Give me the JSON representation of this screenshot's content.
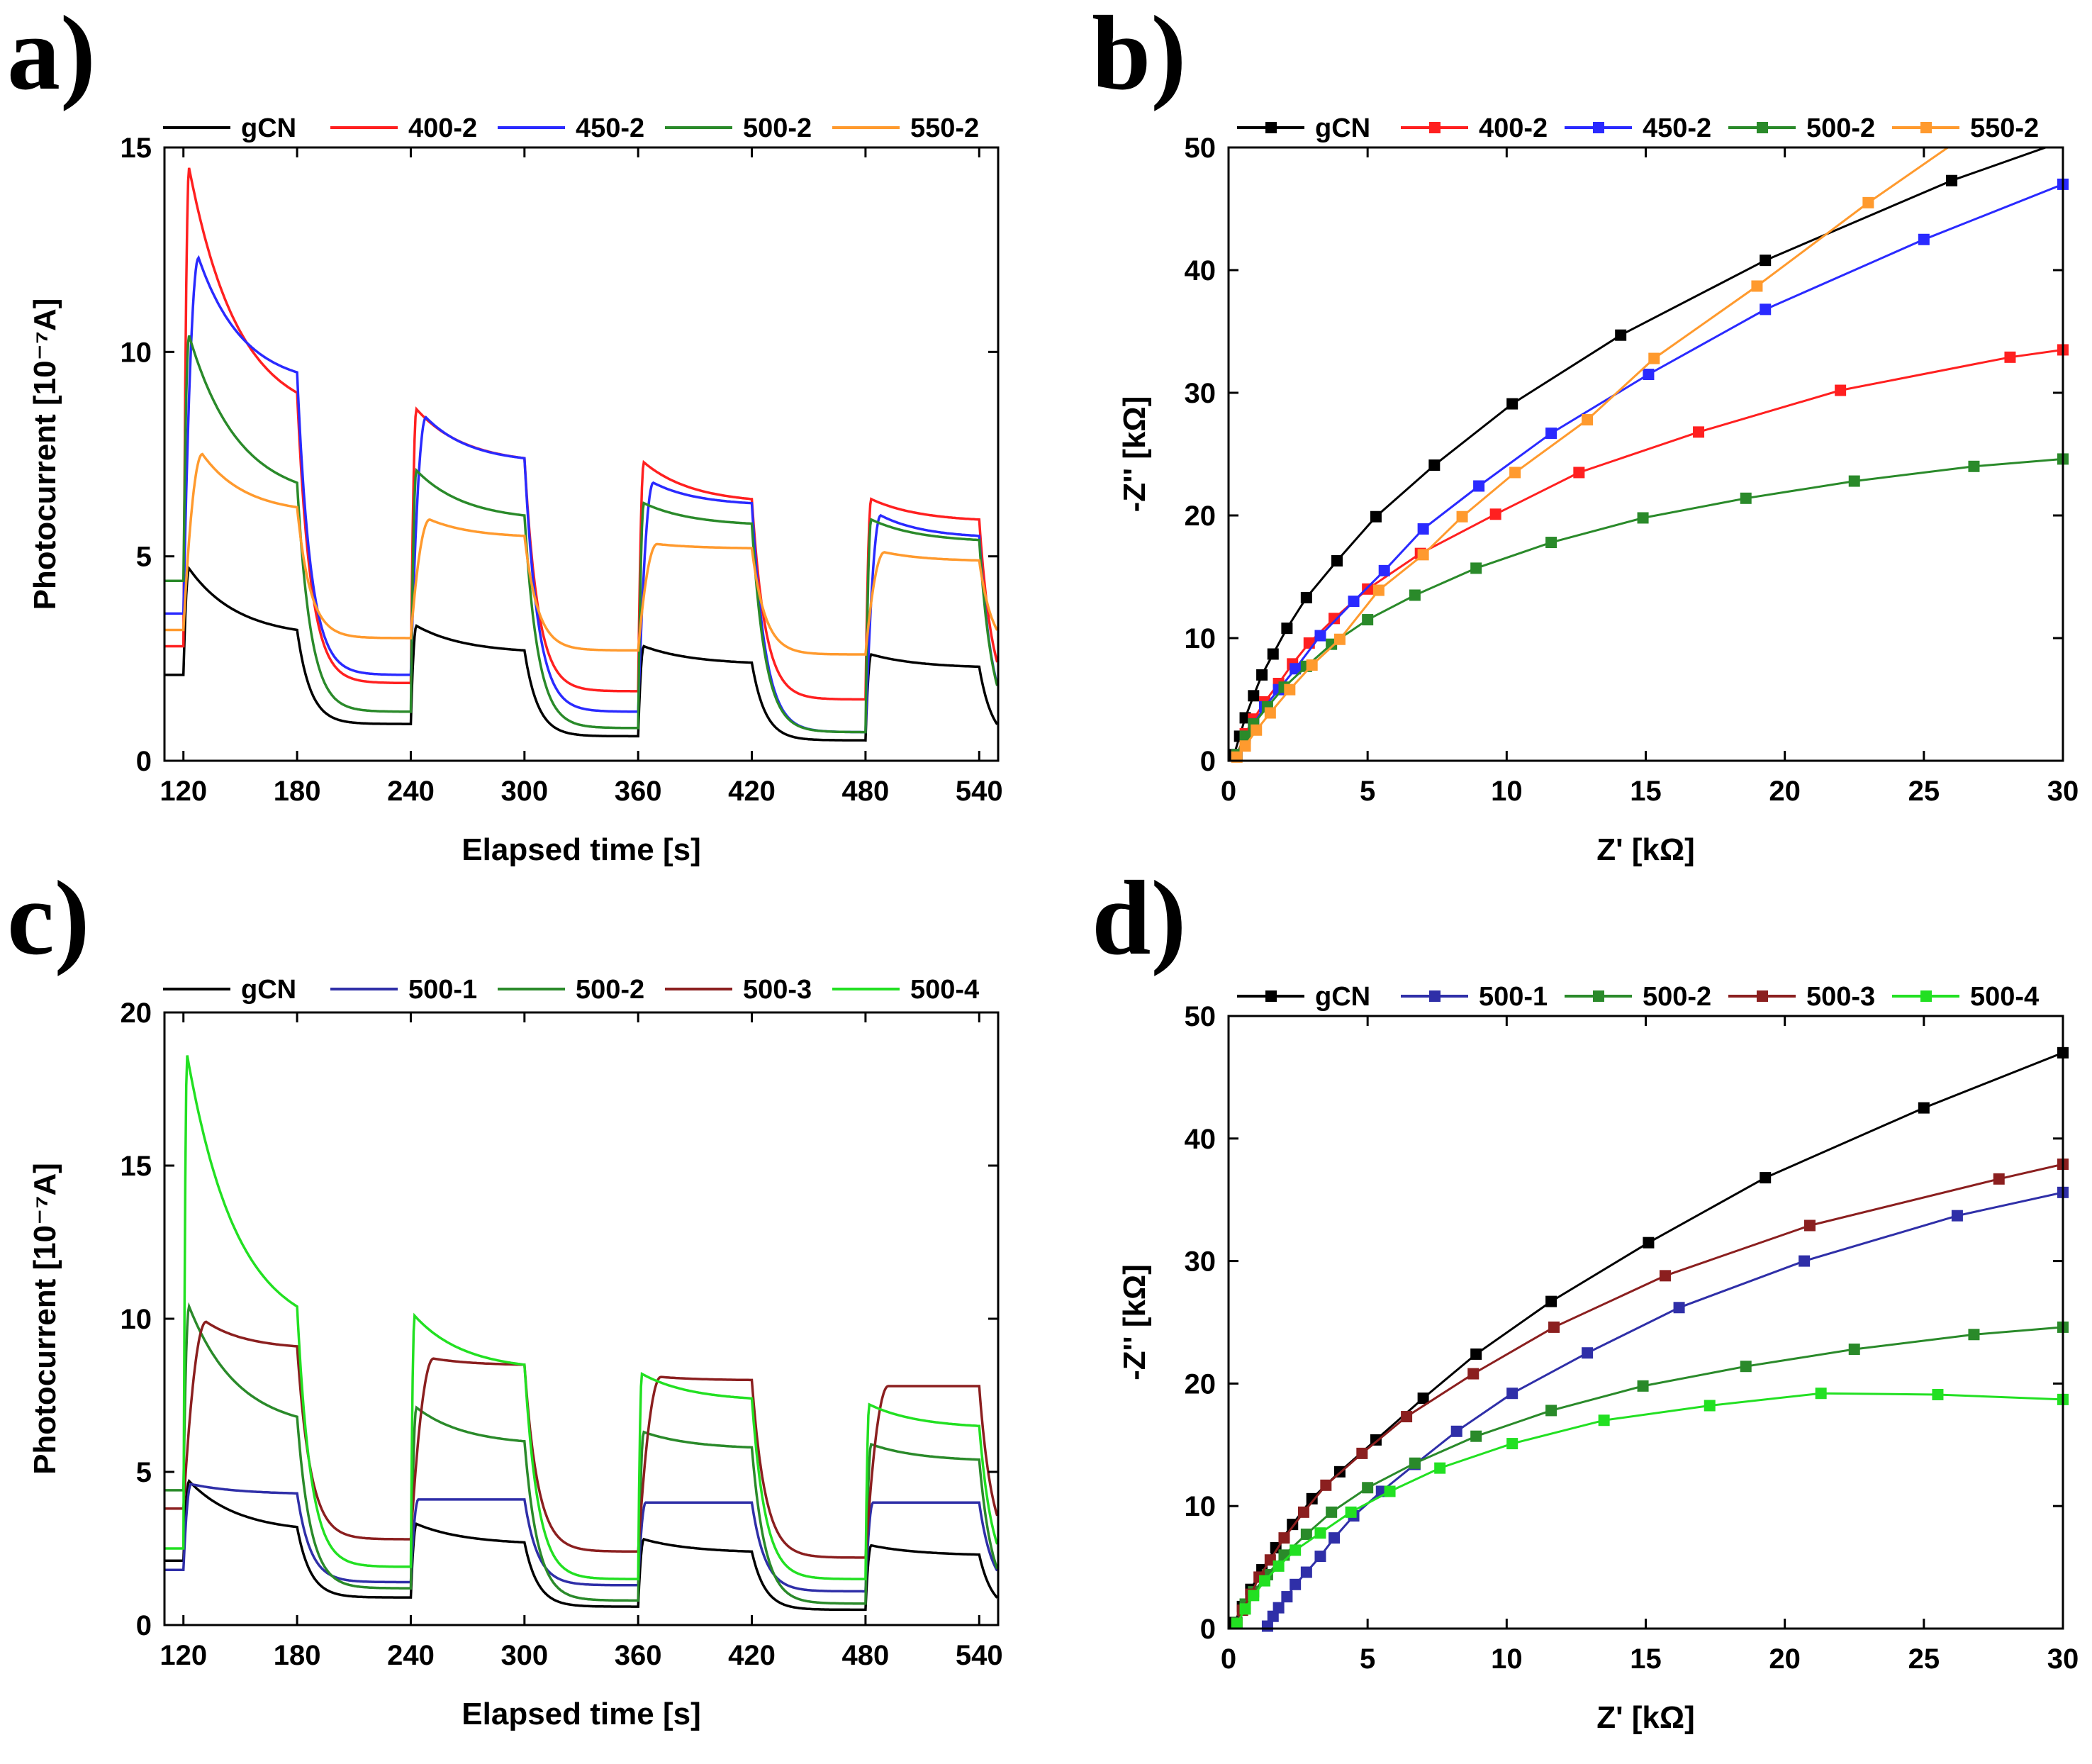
{
  "figure": {
    "panels": [
      "a",
      "b",
      "c",
      "d"
    ]
  },
  "chart_data": [
    {
      "panel_label": "a)",
      "type": "line",
      "xlabel": "Elapsed time [s]",
      "ylabel": "Photocurrent [10⁻⁷A]",
      "xlim": [
        110,
        550
      ],
      "ylim": [
        0,
        15
      ],
      "xticks": [
        120,
        180,
        240,
        300,
        360,
        420,
        480,
        540
      ],
      "yticks": [
        0,
        5,
        10,
        15
      ],
      "legend_position": "top",
      "light_on": [
        120,
        240,
        360,
        480
      ],
      "light_off": [
        180,
        300,
        420,
        540
      ],
      "series": [
        {
          "name": "gCN",
          "color": "#000000",
          "pre": 2.1,
          "peaks": [
            4.7,
            3.3,
            2.8,
            2.6
          ],
          "ends": [
            3.2,
            2.7,
            2.4,
            2.3
          ],
          "darks": [
            0.9,
            0.6,
            0.5,
            0.4
          ],
          "rise": 3
        },
        {
          "name": "400-2",
          "color": "#ff2020",
          "pre": 2.8,
          "peaks": [
            14.5,
            8.6,
            7.3,
            6.4
          ],
          "ends": [
            9.0,
            7.4,
            6.4,
            5.9
          ],
          "darks": [
            1.9,
            1.7,
            1.5,
            1.2
          ],
          "rise": 3
        },
        {
          "name": "450-2",
          "color": "#2a2aff",
          "pre": 3.6,
          "peaks": [
            12.3,
            8.4,
            6.8,
            6.0
          ],
          "ends": [
            9.5,
            7.4,
            6.3,
            5.5
          ],
          "darks": [
            2.1,
            1.2,
            0.7,
            0.6
          ],
          "rise": 8
        },
        {
          "name": "500-2",
          "color": "#2a8a2a",
          "pre": 4.4,
          "peaks": [
            10.4,
            7.1,
            6.3,
            5.9
          ],
          "ends": [
            6.8,
            6.0,
            5.8,
            5.4
          ],
          "darks": [
            1.2,
            0.8,
            0.7,
            0.6
          ],
          "rise": 3
        },
        {
          "name": "550-2",
          "color": "#ff9a2e",
          "pre": 3.2,
          "peaks": [
            7.5,
            5.9,
            5.3,
            5.1
          ],
          "ends": [
            6.2,
            5.5,
            5.2,
            4.9
          ],
          "darks": [
            3.0,
            2.7,
            2.6,
            2.6
          ],
          "rise": 10
        }
      ]
    },
    {
      "panel_label": "b)",
      "type": "line",
      "xlabel": "Z' [kΩ]",
      "ylabel": "-Z'' [kΩ]",
      "xlim": [
        0,
        30
      ],
      "ylim": [
        0,
        50
      ],
      "xticks": [
        0,
        5,
        10,
        15,
        20,
        25,
        30
      ],
      "yticks": [
        0,
        10,
        20,
        30,
        40,
        50
      ],
      "legend_position": "top",
      "series": [
        {
          "name": "gCN",
          "color": "#000000",
          "points": [
            [
              0.2,
              0.5
            ],
            [
              0.4,
              2
            ],
            [
              0.6,
              3.5
            ],
            [
              0.9,
              5.3
            ],
            [
              1.2,
              7
            ],
            [
              1.6,
              8.7
            ],
            [
              2.1,
              10.8
            ],
            [
              2.8,
              13.3
            ],
            [
              3.9,
              16.3
            ],
            [
              5.3,
              19.9
            ],
            [
              7.4,
              24.1
            ],
            [
              10.2,
              29.1
            ],
            [
              14.1,
              34.7
            ],
            [
              19.3,
              40.8
            ],
            [
              26.0,
              47.3
            ],
            [
              30,
              50.5
            ]
          ]
        },
        {
          "name": "400-2",
          "color": "#ff2020",
          "points": [
            [
              0.3,
              0.5
            ],
            [
              0.6,
              2.2
            ],
            [
              0.9,
              3.4
            ],
            [
              1.3,
              4.8
            ],
            [
              1.8,
              6.3
            ],
            [
              2.3,
              7.9
            ],
            [
              2.9,
              9.6
            ],
            [
              3.8,
              11.6
            ],
            [
              5.0,
              14.0
            ],
            [
              6.9,
              16.9
            ],
            [
              9.6,
              20.1
            ],
            [
              12.6,
              23.5
            ],
            [
              16.9,
              26.8
            ],
            [
              22.0,
              30.2
            ],
            [
              28.1,
              32.9
            ],
            [
              30,
              33.5
            ]
          ]
        },
        {
          "name": "450-2",
          "color": "#2a2aff",
          "points": [
            [
              0.3,
              0.5
            ],
            [
              0.6,
              1.8
            ],
            [
              0.9,
              3.0
            ],
            [
              1.3,
              4.4
            ],
            [
              1.8,
              5.8
            ],
            [
              2.4,
              7.5
            ],
            [
              3.3,
              10.2
            ],
            [
              4.5,
              13.0
            ],
            [
              5.6,
              15.5
            ],
            [
              7.0,
              18.9
            ],
            [
              9.0,
              22.4
            ],
            [
              11.6,
              26.7
            ],
            [
              15.1,
              31.5
            ],
            [
              19.3,
              36.8
            ],
            [
              25.0,
              42.5
            ],
            [
              30,
              47
            ]
          ]
        },
        {
          "name": "500-2",
          "color": "#2a8a2a",
          "points": [
            [
              0.3,
              0.5
            ],
            [
              0.6,
              2.0
            ],
            [
              0.9,
              3.0
            ],
            [
              1.4,
              4.4
            ],
            [
              2.0,
              6.0
            ],
            [
              2.8,
              7.7
            ],
            [
              3.7,
              9.5
            ],
            [
              5.0,
              11.5
            ],
            [
              6.7,
              13.5
            ],
            [
              8.9,
              15.7
            ],
            [
              11.6,
              17.8
            ],
            [
              14.9,
              19.8
            ],
            [
              18.6,
              21.4
            ],
            [
              22.5,
              22.8
            ],
            [
              26.8,
              24.0
            ],
            [
              30,
              24.6
            ]
          ]
        },
        {
          "name": "550-2",
          "color": "#ff9a2e",
          "points": [
            [
              0.3,
              0.3
            ],
            [
              0.6,
              1.2
            ],
            [
              1.0,
              2.5
            ],
            [
              1.5,
              3.9
            ],
            [
              2.2,
              5.8
            ],
            [
              3.0,
              7.8
            ],
            [
              4.0,
              9.9
            ],
            [
              5.4,
              13.9
            ],
            [
              7.0,
              16.8
            ],
            [
              8.4,
              19.9
            ],
            [
              10.3,
              23.5
            ],
            [
              12.9,
              27.8
            ],
            [
              15.3,
              32.8
            ],
            [
              19.0,
              38.7
            ],
            [
              23.0,
              45.5
            ],
            [
              26.5,
              51
            ]
          ]
        }
      ]
    },
    {
      "panel_label": "c)",
      "type": "line",
      "xlabel": "Elapsed time [s]",
      "ylabel": "Photocurrent [10⁻⁷A]",
      "xlim": [
        110,
        550
      ],
      "ylim": [
        0,
        20
      ],
      "xticks": [
        120,
        180,
        240,
        300,
        360,
        420,
        480,
        540
      ],
      "yticks": [
        0,
        5,
        10,
        15,
        20
      ],
      "legend_position": "top",
      "light_on": [
        120,
        240,
        360,
        480
      ],
      "light_off": [
        180,
        300,
        420,
        540
      ],
      "series": [
        {
          "name": "gCN",
          "color": "#000000",
          "pre": 2.1,
          "peaks": [
            4.7,
            3.3,
            2.8,
            2.6
          ],
          "ends": [
            3.2,
            2.7,
            2.4,
            2.3
          ],
          "darks": [
            0.9,
            0.6,
            0.5,
            0.4
          ],
          "rise": 3
        },
        {
          "name": "500-1",
          "color": "#2f2fa8",
          "pre": 1.8,
          "peaks": [
            4.6,
            4.1,
            4.0,
            4.0
          ],
          "ends": [
            4.3,
            4.1,
            4.0,
            4.0
          ],
          "darks": [
            1.4,
            1.3,
            1.1,
            1.0
          ],
          "rise": 4
        },
        {
          "name": "500-2",
          "color": "#2a8a2a",
          "pre": 4.4,
          "peaks": [
            10.4,
            7.1,
            6.3,
            5.9
          ],
          "ends": [
            6.8,
            6.0,
            5.8,
            5.4
          ],
          "darks": [
            1.2,
            0.8,
            0.7,
            0.6
          ],
          "rise": 3
        },
        {
          "name": "500-3",
          "color": "#8b1f1f",
          "pre": 3.8,
          "peaks": [
            9.9,
            8.7,
            8.1,
            7.8
          ],
          "ends": [
            9.1,
            8.5,
            8.0,
            7.8
          ],
          "darks": [
            2.8,
            2.4,
            2.2,
            2.1
          ],
          "rise": 12
        },
        {
          "name": "500-4",
          "color": "#22e022",
          "pre": 2.5,
          "peaks": [
            18.6,
            10.1,
            8.2,
            7.2
          ],
          "ends": [
            10.4,
            8.5,
            7.4,
            6.5
          ],
          "darks": [
            1.9,
            1.5,
            1.5,
            1.3
          ],
          "rise": 2
        }
      ]
    },
    {
      "panel_label": "d)",
      "type": "line",
      "xlabel": "Z' [kΩ]",
      "ylabel": "-Z'' [kΩ]",
      "xlim": [
        0,
        30
      ],
      "ylim": [
        0,
        50
      ],
      "xticks": [
        0,
        5,
        10,
        15,
        20,
        25,
        30
      ],
      "yticks": [
        0,
        10,
        20,
        30,
        40,
        50
      ],
      "legend_position": "top",
      "series": [
        {
          "name": "gCN",
          "color": "#000000",
          "points": [
            [
              0.2,
              0.5
            ],
            [
              0.5,
              1.8
            ],
            [
              0.8,
              3.2
            ],
            [
              1.2,
              4.8
            ],
            [
              1.7,
              6.6
            ],
            [
              2.3,
              8.5
            ],
            [
              3.0,
              10.6
            ],
            [
              4.0,
              12.8
            ],
            [
              5.3,
              15.4
            ],
            [
              7.0,
              18.8
            ],
            [
              8.9,
              22.4
            ],
            [
              11.6,
              26.7
            ],
            [
              15.1,
              31.5
            ],
            [
              19.3,
              36.8
            ],
            [
              25.0,
              42.5
            ],
            [
              30,
              47
            ]
          ]
        },
        {
          "name": "500-1",
          "color": "#2f2fa8",
          "points": [
            [
              1.4,
              0.2
            ],
            [
              1.6,
              1.0
            ],
            [
              1.8,
              1.7
            ],
            [
              2.1,
              2.6
            ],
            [
              2.4,
              3.6
            ],
            [
              2.8,
              4.6
            ],
            [
              3.3,
              5.9
            ],
            [
              3.8,
              7.4
            ],
            [
              4.5,
              9.2
            ],
            [
              5.5,
              11.2
            ],
            [
              6.7,
              13.4
            ],
            [
              8.2,
              16.1
            ],
            [
              10.2,
              19.2
            ],
            [
              12.9,
              22.5
            ],
            [
              16.2,
              26.2
            ],
            [
              20.7,
              30.0
            ],
            [
              26.2,
              33.7
            ],
            [
              30,
              35.6
            ]
          ]
        },
        {
          "name": "500-2",
          "color": "#2a8a2a",
          "points": [
            [
              0.3,
              0.5
            ],
            [
              0.6,
              2.0
            ],
            [
              0.9,
              3.0
            ],
            [
              1.4,
              4.4
            ],
            [
              2.0,
              6.0
            ],
            [
              2.8,
              7.7
            ],
            [
              3.7,
              9.5
            ],
            [
              5.0,
              11.5
            ],
            [
              6.7,
              13.5
            ],
            [
              8.9,
              15.7
            ],
            [
              11.6,
              17.8
            ],
            [
              14.9,
              19.8
            ],
            [
              18.6,
              21.4
            ],
            [
              22.5,
              22.8
            ],
            [
              26.8,
              24.0
            ],
            [
              30,
              24.6
            ]
          ]
        },
        {
          "name": "500-3",
          "color": "#8b1f1f",
          "points": [
            [
              0.3,
              0.4
            ],
            [
              0.5,
              1.5
            ],
            [
              0.8,
              2.8
            ],
            [
              1.1,
              4.2
            ],
            [
              1.5,
              5.6
            ],
            [
              2.0,
              7.4
            ],
            [
              2.7,
              9.5
            ],
            [
              3.5,
              11.7
            ],
            [
              4.8,
              14.3
            ],
            [
              6.4,
              17.3
            ],
            [
              8.8,
              20.8
            ],
            [
              11.7,
              24.6
            ],
            [
              15.7,
              28.8
            ],
            [
              20.9,
              32.9
            ],
            [
              27.7,
              36.7
            ],
            [
              30,
              37.9
            ]
          ]
        },
        {
          "name": "500-4",
          "color": "#22e022",
          "points": [
            [
              0.3,
              0.4
            ],
            [
              0.6,
              1.6
            ],
            [
              0.9,
              2.7
            ],
            [
              1.3,
              3.9
            ],
            [
              1.8,
              5.1
            ],
            [
              2.4,
              6.4
            ],
            [
              3.3,
              7.8
            ],
            [
              4.4,
              9.5
            ],
            [
              5.8,
              11.2
            ],
            [
              7.6,
              13.1
            ],
            [
              10.2,
              15.1
            ],
            [
              13.5,
              17.0
            ],
            [
              17.3,
              18.2
            ],
            [
              21.3,
              19.2
            ],
            [
              25.5,
              19.1
            ],
            [
              30,
              18.7
            ]
          ]
        }
      ]
    }
  ]
}
